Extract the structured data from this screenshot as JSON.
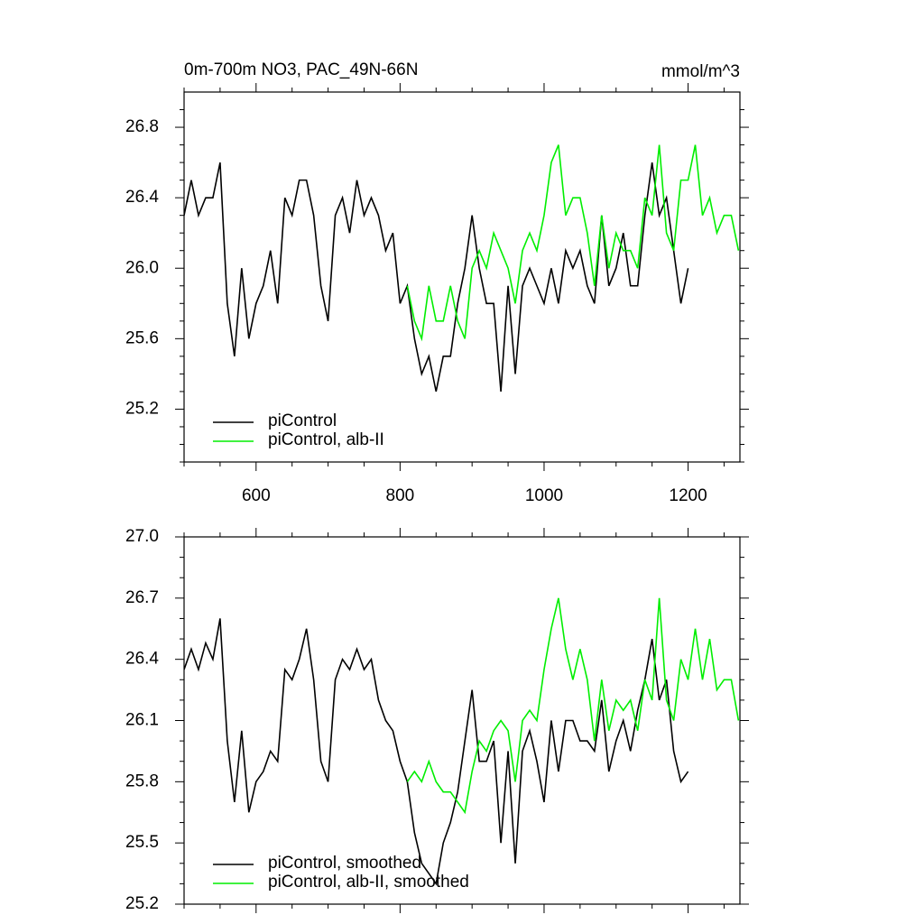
{
  "chart_data": [
    {
      "type": "line",
      "title": "0m-700m NO3, PAC_49N-66N",
      "units": "mmol/m^3",
      "x": [
        500,
        510,
        520,
        530,
        540,
        550,
        560,
        570,
        580,
        590,
        600,
        610,
        620,
        630,
        640,
        650,
        660,
        670,
        680,
        690,
        700,
        710,
        720,
        730,
        740,
        750,
        760,
        770,
        780,
        790,
        800,
        810,
        820,
        830,
        840,
        850,
        860,
        870,
        880,
        890,
        900,
        910,
        920,
        930,
        940,
        950,
        960,
        970,
        980,
        990,
        1000,
        1010,
        1020,
        1030,
        1040,
        1050,
        1060,
        1070,
        1080,
        1090,
        1100,
        1110,
        1120,
        1130,
        1140,
        1150,
        1160,
        1170,
        1180,
        1190,
        1200,
        1210,
        1220,
        1230,
        1240,
        1250,
        1260,
        1270
      ],
      "series": [
        {
          "name": "piControl",
          "color": "#000000",
          "values": [
            26.3,
            26.5,
            26.3,
            26.4,
            26.4,
            26.6,
            25.8,
            25.5,
            26.0,
            25.6,
            25.8,
            25.9,
            26.1,
            25.8,
            26.4,
            26.3,
            26.5,
            26.5,
            26.3,
            25.9,
            25.7,
            26.3,
            26.4,
            26.2,
            26.5,
            26.3,
            26.4,
            26.3,
            26.1,
            26.2,
            25.8,
            25.9,
            25.6,
            25.4,
            25.5,
            25.3,
            25.5,
            25.5,
            25.8,
            26.0,
            26.3,
            26.0,
            25.8,
            25.8,
            25.3,
            25.9,
            25.4,
            25.9,
            26.0,
            25.9,
            25.8,
            26.0,
            25.8,
            26.1,
            26.0,
            26.1,
            25.9,
            25.8,
            26.3,
            25.9,
            26.0,
            26.2,
            25.9,
            25.9,
            26.3,
            26.6,
            26.3,
            26.4,
            26.1,
            25.8,
            26.0,
            null,
            null,
            null,
            null,
            null,
            null,
            null
          ]
        },
        {
          "name": "piControl, alb-II",
          "color": "#00ee00",
          "values": [
            null,
            null,
            null,
            null,
            null,
            null,
            null,
            null,
            null,
            null,
            null,
            null,
            null,
            null,
            null,
            null,
            null,
            null,
            null,
            null,
            null,
            null,
            null,
            null,
            null,
            null,
            null,
            null,
            null,
            null,
            null,
            25.9,
            25.7,
            25.6,
            25.9,
            25.7,
            25.7,
            25.9,
            25.7,
            25.6,
            26.0,
            26.1,
            26.0,
            26.2,
            26.1,
            26.0,
            25.8,
            26.1,
            26.2,
            26.1,
            26.3,
            26.6,
            26.7,
            26.3,
            26.4,
            26.4,
            26.2,
            25.9,
            26.3,
            26.0,
            26.2,
            26.1,
            26.1,
            26.0,
            26.4,
            26.3,
            26.7,
            26.2,
            26.1,
            26.5,
            26.5,
            26.7,
            26.3,
            26.4,
            26.2,
            26.3,
            26.3,
            26.1
          ]
        }
      ],
      "xlim": [
        500,
        1272
      ],
      "xticks": [
        600,
        800,
        1000,
        1200
      ],
      "ylim": [
        24.9,
        27.0
      ],
      "yticks": [
        {
          "value": 25.2,
          "label": "25.2"
        },
        25.6,
        {
          "value": 26.0,
          "label": "26.0"
        },
        26.4,
        26.8
      ],
      "legend": "lower left"
    },
    {
      "type": "line",
      "x": [
        500,
        510,
        520,
        530,
        540,
        550,
        560,
        570,
        580,
        590,
        600,
        610,
        620,
        630,
        640,
        650,
        660,
        670,
        680,
        690,
        700,
        710,
        720,
        730,
        740,
        750,
        760,
        770,
        780,
        790,
        800,
        810,
        820,
        830,
        840,
        850,
        860,
        870,
        880,
        890,
        900,
        910,
        920,
        930,
        940,
        950,
        960,
        970,
        980,
        990,
        1000,
        1010,
        1020,
        1030,
        1040,
        1050,
        1060,
        1070,
        1080,
        1090,
        1100,
        1110,
        1120,
        1130,
        1140,
        1150,
        1160,
        1170,
        1180,
        1190,
        1200,
        1210,
        1220,
        1230,
        1240,
        1250,
        1260,
        1270
      ],
      "series": [
        {
          "name": "piControl, smoothed",
          "color": "#000000",
          "values": [
            26.35,
            26.45,
            26.35,
            26.48,
            26.4,
            26.6,
            26.0,
            25.7,
            26.05,
            25.65,
            25.8,
            25.85,
            25.95,
            25.9,
            26.35,
            26.3,
            26.4,
            26.55,
            26.3,
            25.9,
            25.8,
            26.3,
            26.4,
            26.35,
            26.45,
            26.35,
            26.4,
            26.2,
            26.1,
            26.05,
            25.9,
            25.8,
            25.55,
            25.4,
            25.35,
            25.3,
            25.5,
            25.6,
            25.75,
            26.0,
            26.25,
            25.9,
            25.9,
            26.0,
            25.5,
            25.95,
            25.4,
            25.95,
            26.05,
            25.9,
            25.7,
            26.1,
            25.85,
            26.1,
            26.1,
            26.0,
            26.0,
            25.95,
            26.2,
            25.85,
            26.0,
            26.1,
            25.95,
            26.15,
            26.3,
            26.5,
            26.2,
            26.3,
            25.95,
            25.8,
            25.85,
            null,
            null,
            null,
            null,
            null,
            null,
            null
          ]
        },
        {
          "name": "piControl, alb-II, smoothed",
          "color": "#00ee00",
          "values": [
            null,
            null,
            null,
            null,
            null,
            null,
            null,
            null,
            null,
            null,
            null,
            null,
            null,
            null,
            null,
            null,
            null,
            null,
            null,
            null,
            null,
            null,
            null,
            null,
            null,
            null,
            null,
            null,
            null,
            null,
            null,
            25.8,
            25.85,
            25.8,
            25.9,
            25.8,
            25.75,
            25.75,
            25.7,
            25.65,
            25.85,
            26.0,
            25.95,
            26.05,
            26.1,
            26.05,
            25.8,
            26.1,
            26.15,
            26.1,
            26.35,
            26.55,
            26.7,
            26.45,
            26.3,
            26.45,
            26.3,
            26.0,
            26.3,
            26.05,
            26.2,
            26.15,
            26.2,
            26.05,
            26.3,
            26.2,
            26.7,
            26.2,
            26.1,
            26.4,
            26.3,
            26.55,
            26.3,
            26.5,
            26.25,
            26.3,
            26.3,
            26.1
          ]
        }
      ],
      "xlim": [
        500,
        1272
      ],
      "ylim": [
        25.2,
        27.0
      ],
      "yticks": [
        {
          "value": 25.2,
          "label": "25.2"
        },
        25.5,
        25.8,
        26.1,
        26.4,
        26.7,
        {
          "value": 27.0,
          "label": "27.0"
        }
      ],
      "legend": "lower left"
    }
  ]
}
